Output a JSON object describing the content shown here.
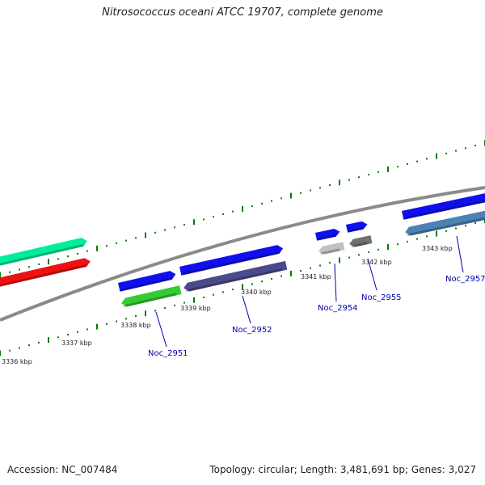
{
  "title": "Nitrosococcus oceani ATCC 19707, complete genome",
  "footer": {
    "accession": "Accession: NC_007484",
    "summary": "Topology: circular; Length: 3,481,691 bp; Genes: 3,027"
  },
  "colors": {
    "backbone": "#8a8a8a",
    "tick": "#0a7a0a",
    "gene_label": "#0000aa",
    "forward_strand": "#1010ee"
  },
  "tick_labels": [
    "3336 kbp",
    "3337 kbp",
    "3338 kbp",
    "3339 kbp",
    "3340 kbp",
    "3341 kbp",
    "3342 kbp",
    "3343 kbp"
  ],
  "gene_labels": [
    "Noc_2951",
    "Noc_2952",
    "Noc_2954",
    "Noc_2955",
    "Noc_2957"
  ],
  "features": [
    {
      "strand": "forward",
      "color": "#00ee99"
    },
    {
      "strand": "forward",
      "color": "#ee1111"
    },
    {
      "strand": "forward",
      "color": "#1010ee"
    },
    {
      "strand": "reverse",
      "color": "#33cc33"
    },
    {
      "strand": "forward",
      "color": "#1010ee"
    },
    {
      "strand": "reverse",
      "color": "#4a4a8c"
    },
    {
      "strand": "forward",
      "color": "#1010ee"
    },
    {
      "strand": "reverse",
      "color": "#c0c0c0"
    },
    {
      "strand": "forward",
      "color": "#1010ee"
    },
    {
      "strand": "reverse",
      "color": "#707070"
    },
    {
      "strand": "forward",
      "color": "#1010ee"
    },
    {
      "strand": "reverse",
      "color": "#4a82b4"
    }
  ]
}
